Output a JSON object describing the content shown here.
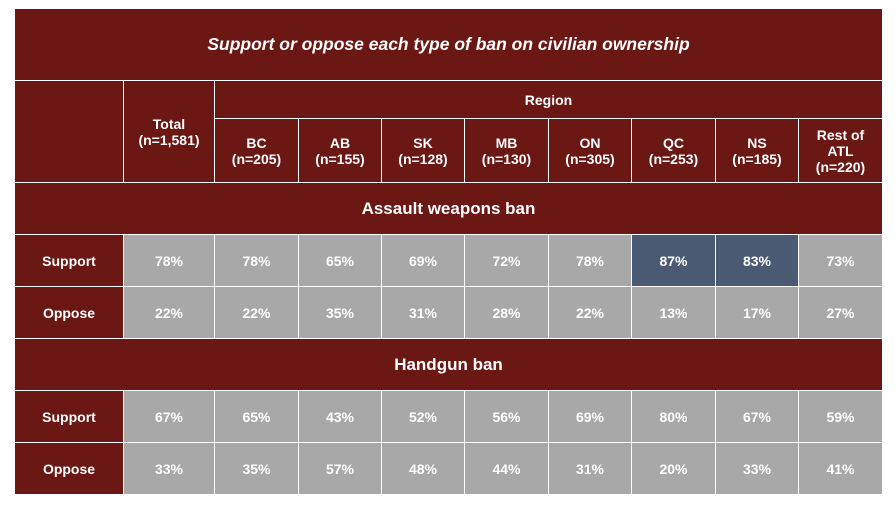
{
  "title": "Support or oppose each type of ban on civilian ownership",
  "region_header": "Region",
  "columns": [
    {
      "line1": "Total",
      "line2": "(n=1,581)"
    },
    {
      "line1": "BC",
      "line2": "(n=205)"
    },
    {
      "line1": "AB",
      "line2": "(n=155)"
    },
    {
      "line1": "SK",
      "line2": "(n=128)"
    },
    {
      "line1": "MB",
      "line2": "(n=130)"
    },
    {
      "line1": "ON",
      "line2": "(n=305)"
    },
    {
      "line1": "QC",
      "line2": "(n=253)"
    },
    {
      "line1": "NS",
      "line2": "(n=185)"
    },
    {
      "line1": "Rest of",
      "line2": "ATL",
      "line3": "(n=220)"
    }
  ],
  "sections": [
    {
      "title": "Assault weapons ban",
      "rows": [
        {
          "label": "Support",
          "values": [
            "78%",
            "78%",
            "65%",
            "69%",
            "72%",
            "78%",
            "87%",
            "83%",
            "73%"
          ],
          "highlight": [
            false,
            false,
            false,
            false,
            false,
            false,
            true,
            true,
            false
          ]
        },
        {
          "label": "Oppose",
          "values": [
            "22%",
            "22%",
            "35%",
            "31%",
            "28%",
            "22%",
            "13%",
            "17%",
            "27%"
          ],
          "highlight": [
            false,
            false,
            false,
            false,
            false,
            false,
            false,
            false,
            false
          ]
        }
      ]
    },
    {
      "title": "Handgun ban",
      "rows": [
        {
          "label": "Support",
          "values": [
            "67%",
            "65%",
            "43%",
            "52%",
            "56%",
            "69%",
            "80%",
            "67%",
            "59%"
          ],
          "highlight": [
            false,
            false,
            false,
            false,
            false,
            false,
            false,
            false,
            false
          ]
        },
        {
          "label": "Oppose",
          "values": [
            "33%",
            "35%",
            "57%",
            "48%",
            "44%",
            "31%",
            "20%",
            "33%",
            "41%"
          ],
          "highlight": [
            false,
            false,
            false,
            false,
            false,
            false,
            false,
            false,
            false
          ]
        }
      ]
    }
  ],
  "colors": {
    "header_bg": "#6b1714",
    "cell_bg": "#a8a8a8",
    "highlight_bg": "#4a5a73",
    "text": "#ffffff"
  },
  "chart_data": {
    "type": "table",
    "title": "Support or oppose each type of ban on civilian ownership",
    "columns": [
      "Total (n=1,581)",
      "BC (n=205)",
      "AB (n=155)",
      "SK (n=128)",
      "MB (n=130)",
      "ON (n=305)",
      "QC (n=253)",
      "NS (n=185)",
      "Rest of ATL (n=220)"
    ],
    "tables": [
      {
        "name": "Assault weapons ban",
        "rows": [
          {
            "label": "Support",
            "values": [
              78,
              78,
              65,
              69,
              72,
              78,
              87,
              83,
              73
            ]
          },
          {
            "label": "Oppose",
            "values": [
              22,
              22,
              35,
              31,
              28,
              22,
              13,
              17,
              27
            ]
          }
        ]
      },
      {
        "name": "Handgun ban",
        "rows": [
          {
            "label": "Support",
            "values": [
              67,
              65,
              43,
              52,
              56,
              69,
              80,
              67,
              59
            ]
          },
          {
            "label": "Oppose",
            "values": [
              33,
              35,
              57,
              48,
              44,
              31,
              20,
              33,
              41
            ]
          }
        ]
      }
    ]
  }
}
